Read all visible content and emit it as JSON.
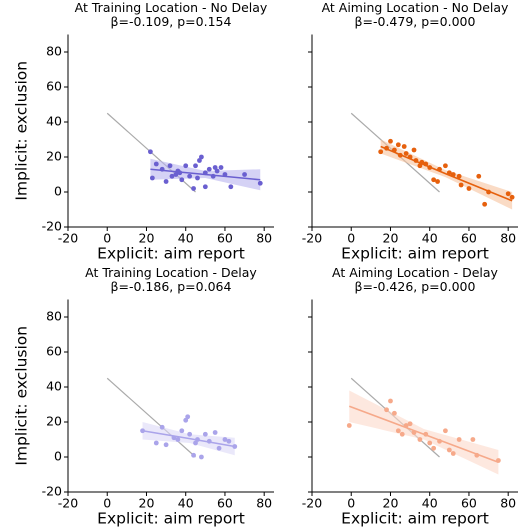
{
  "chart_data": [
    {
      "type": "scatter",
      "title": "At Training Location - No Delay",
      "subtitle": "β=-0.109, p=0.154",
      "xlabel": "Explicit: aim report",
      "ylabel": "Implicit: exclusion",
      "show_ytick_labels": true,
      "color": "#6a5fd0",
      "band_color": "#b9b4ee",
      "xlim": [
        -20,
        85
      ],
      "ylim": [
        -20,
        90
      ],
      "xticks": [
        -20,
        0,
        20,
        40,
        60,
        80
      ],
      "yticks": [
        -20,
        0,
        20,
        40,
        60,
        80
      ],
      "x": [
        22,
        23,
        25,
        28,
        30,
        32,
        33,
        35,
        36,
        37,
        38,
        40,
        42,
        44,
        45,
        46,
        47,
        48,
        50,
        50,
        52,
        54,
        55,
        56,
        58,
        60,
        63,
        70,
        78
      ],
      "y": [
        23,
        8,
        16,
        13,
        6,
        15,
        9,
        10,
        12,
        11,
        7,
        15,
        9,
        2,
        15,
        8,
        18,
        20,
        3,
        11,
        13,
        9,
        14,
        12,
        14,
        10,
        3,
        10,
        5
      ],
      "fit": {
        "x": [
          22,
          50,
          78
        ],
        "y": [
          13,
          10,
          7
        ],
        "lower": [
          7,
          8,
          1
        ],
        "upper": [
          19,
          12,
          13
        ]
      },
      "reference": {
        "x": [
          0,
          45
        ],
        "y": [
          45,
          0
        ],
        "color": "#aaaaaa"
      }
    },
    {
      "type": "scatter",
      "title": "At Aiming Location - No Delay",
      "subtitle": "β=-0.479, p=0.000",
      "xlabel": "Explicit: aim report",
      "show_ytick_labels": false,
      "color": "#e6600d",
      "band_color": "#f7c39f",
      "xlim": [
        -20,
        85
      ],
      "ylim": [
        -20,
        90
      ],
      "xticks": [
        -20,
        0,
        20,
        40,
        60,
        80
      ],
      "yticks": [
        -20,
        0,
        20,
        40,
        60,
        80
      ],
      "x": [
        15,
        18,
        20,
        22,
        24,
        25,
        27,
        28,
        30,
        32,
        33,
        35,
        36,
        38,
        40,
        42,
        44,
        45,
        48,
        50,
        52,
        55,
        56,
        60,
        65,
        68,
        70,
        80,
        82
      ],
      "y": [
        23,
        25,
        29,
        24,
        27,
        21,
        26,
        22,
        20,
        24,
        18,
        15,
        17,
        16,
        14,
        7,
        6,
        13,
        15,
        11,
        10,
        9,
        4,
        2,
        9,
        -7,
        0,
        -1,
        -3
      ],
      "fit": {
        "x": [
          15,
          48,
          82
        ],
        "y": [
          26,
          10.5,
          -5
        ],
        "lower": [
          22,
          8.5,
          -10
        ],
        "upper": [
          30,
          12.5,
          0
        ]
      },
      "reference": {
        "x": [
          0,
          45
        ],
        "y": [
          45,
          0
        ],
        "color": "#aaaaaa"
      }
    },
    {
      "type": "scatter",
      "title": "At Training Location - Delay",
      "subtitle": "β=-0.186, p=0.064",
      "xlabel": "Explicit: aim report",
      "ylabel": "Implicit: exclusion",
      "show_ytick_labels": true,
      "color": "#aaa4ea",
      "band_color": "#dcd9f6",
      "xlim": [
        -20,
        85
      ],
      "ylim": [
        -20,
        90
      ],
      "xticks": [
        -20,
        0,
        20,
        40,
        60,
        80
      ],
      "yticks": [
        -20,
        0,
        20,
        40,
        60,
        80
      ],
      "x": [
        18,
        25,
        28,
        30,
        34,
        36,
        38,
        40,
        41,
        42,
        44,
        45,
        46,
        48,
        50,
        52,
        55,
        57,
        60,
        62,
        65
      ],
      "y": [
        15,
        8,
        17,
        7,
        11,
        10,
        15,
        21,
        23,
        13,
        1,
        8,
        10,
        0,
        13,
        9,
        14,
        5,
        10,
        9,
        6
      ],
      "fit": {
        "x": [
          18,
          42,
          65
        ],
        "y": [
          15,
          10.5,
          6
        ],
        "lower": [
          10,
          8,
          1
        ],
        "upper": [
          20,
          13,
          11
        ]
      },
      "reference": {
        "x": [
          0,
          45
        ],
        "y": [
          45,
          0
        ],
        "color": "#aaaaaa"
      }
    },
    {
      "type": "scatter",
      "title": "At Aiming Location - Delay",
      "subtitle": "β=-0.426, p=0.000",
      "xlabel": "Explicit: aim report",
      "show_ytick_labels": false,
      "color": "#f6a98a",
      "band_color": "#fbd8c9",
      "xlim": [
        -20,
        85
      ],
      "ylim": [
        -20,
        90
      ],
      "xticks": [
        -20,
        0,
        20,
        40,
        60,
        80
      ],
      "yticks": [
        -20,
        0,
        20,
        40,
        60,
        80
      ],
      "x": [
        -1,
        18,
        20,
        22,
        24,
        26,
        28,
        30,
        32,
        35,
        38,
        40,
        42,
        45,
        48,
        50,
        52,
        55,
        62,
        64,
        75
      ],
      "y": [
        18,
        27,
        32,
        25,
        15,
        13,
        18,
        19,
        14,
        10,
        13,
        8,
        5,
        9,
        15,
        4,
        2,
        10,
        10,
        1,
        -2
      ],
      "fit": {
        "x": [
          -1,
          37,
          75
        ],
        "y": [
          29,
          13,
          -3
        ],
        "lower": [
          20,
          10,
          -10
        ],
        "upper": [
          38,
          16,
          4
        ]
      },
      "reference": {
        "x": [
          0,
          45
        ],
        "y": [
          45,
          0
        ],
        "color": "#aaaaaa"
      }
    }
  ]
}
